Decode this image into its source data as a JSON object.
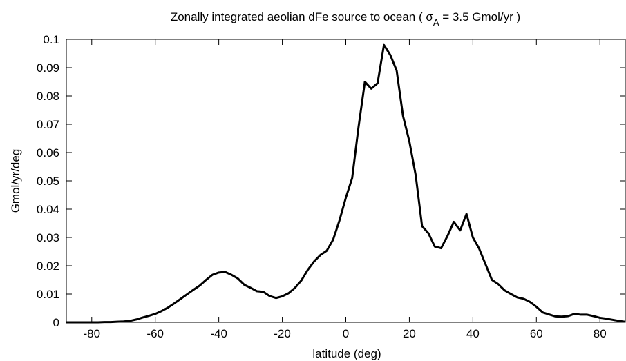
{
  "chart_data": {
    "type": "line",
    "title": [
      "Zonally integrated aeolian dFe source to ocean ( σ",
      "A",
      " = 3.5 Gmol/yr )"
    ],
    "xlabel": "latitude (deg)",
    "ylabel": "Gmol/yr/deg",
    "color": "#000000",
    "x": [
      -88,
      -86,
      -84,
      -82,
      -80,
      -78,
      -76,
      -74,
      -72,
      -70,
      -68,
      -66,
      -64,
      -62,
      -60,
      -58,
      -56,
      -54,
      -52,
      -50,
      -48,
      -46,
      -44,
      -42,
      -40,
      -38,
      -36,
      -34,
      -32,
      -30,
      -28,
      -26,
      -24,
      -22,
      -20,
      -18,
      -16,
      -14,
      -12,
      -10,
      -8,
      -6,
      -4,
      -2,
      0,
      2,
      4,
      6,
      8,
      10,
      12,
      14,
      16,
      18,
      20,
      22,
      24,
      26,
      28,
      30,
      32,
      34,
      36,
      38,
      40,
      42,
      44,
      46,
      48,
      50,
      52,
      54,
      56,
      58,
      60,
      62,
      64,
      66,
      68,
      70,
      72,
      74,
      76,
      78,
      80,
      82,
      84,
      86,
      88
    ],
    "values": [
      0,
      0,
      0,
      0,
      0,
      0,
      0.0001,
      0.0001,
      0.0002,
      0.0003,
      0.0005,
      0.001,
      0.0017,
      0.0023,
      0.003,
      0.004,
      0.0052,
      0.0067,
      0.0083,
      0.0099,
      0.0115,
      0.013,
      0.015,
      0.0168,
      0.0176,
      0.0178,
      0.0168,
      0.0155,
      0.0133,
      0.0122,
      0.011,
      0.0108,
      0.0093,
      0.0086,
      0.0092,
      0.0103,
      0.0122,
      0.0148,
      0.0185,
      0.0215,
      0.0238,
      0.0253,
      0.0292,
      0.036,
      0.044,
      0.051,
      0.069,
      0.085,
      0.0826,
      0.0845,
      0.098,
      0.0945,
      0.089,
      0.073,
      0.064,
      0.052,
      0.034,
      0.0315,
      0.0268,
      0.0262,
      0.0305,
      0.0355,
      0.0325,
      0.0383,
      0.03,
      0.026,
      0.0205,
      0.015,
      0.0135,
      0.0113,
      0.01,
      0.0088,
      0.0083,
      0.0072,
      0.0055,
      0.0035,
      0.0028,
      0.0021,
      0.002,
      0.0022,
      0.003,
      0.0027,
      0.0027,
      0.0022,
      0.0016,
      0.0013,
      0.0009,
      0.0005,
      0.0002
    ],
    "xlim": [
      -88,
      88
    ],
    "ylim": [
      0,
      0.1
    ],
    "xticks": [
      -80,
      -60,
      -40,
      -20,
      0,
      20,
      40,
      60,
      80
    ],
    "yticks": [
      0,
      0.01,
      0.02,
      0.03,
      0.04,
      0.05,
      0.06,
      0.07,
      0.08,
      0.09,
      0.1
    ]
  }
}
